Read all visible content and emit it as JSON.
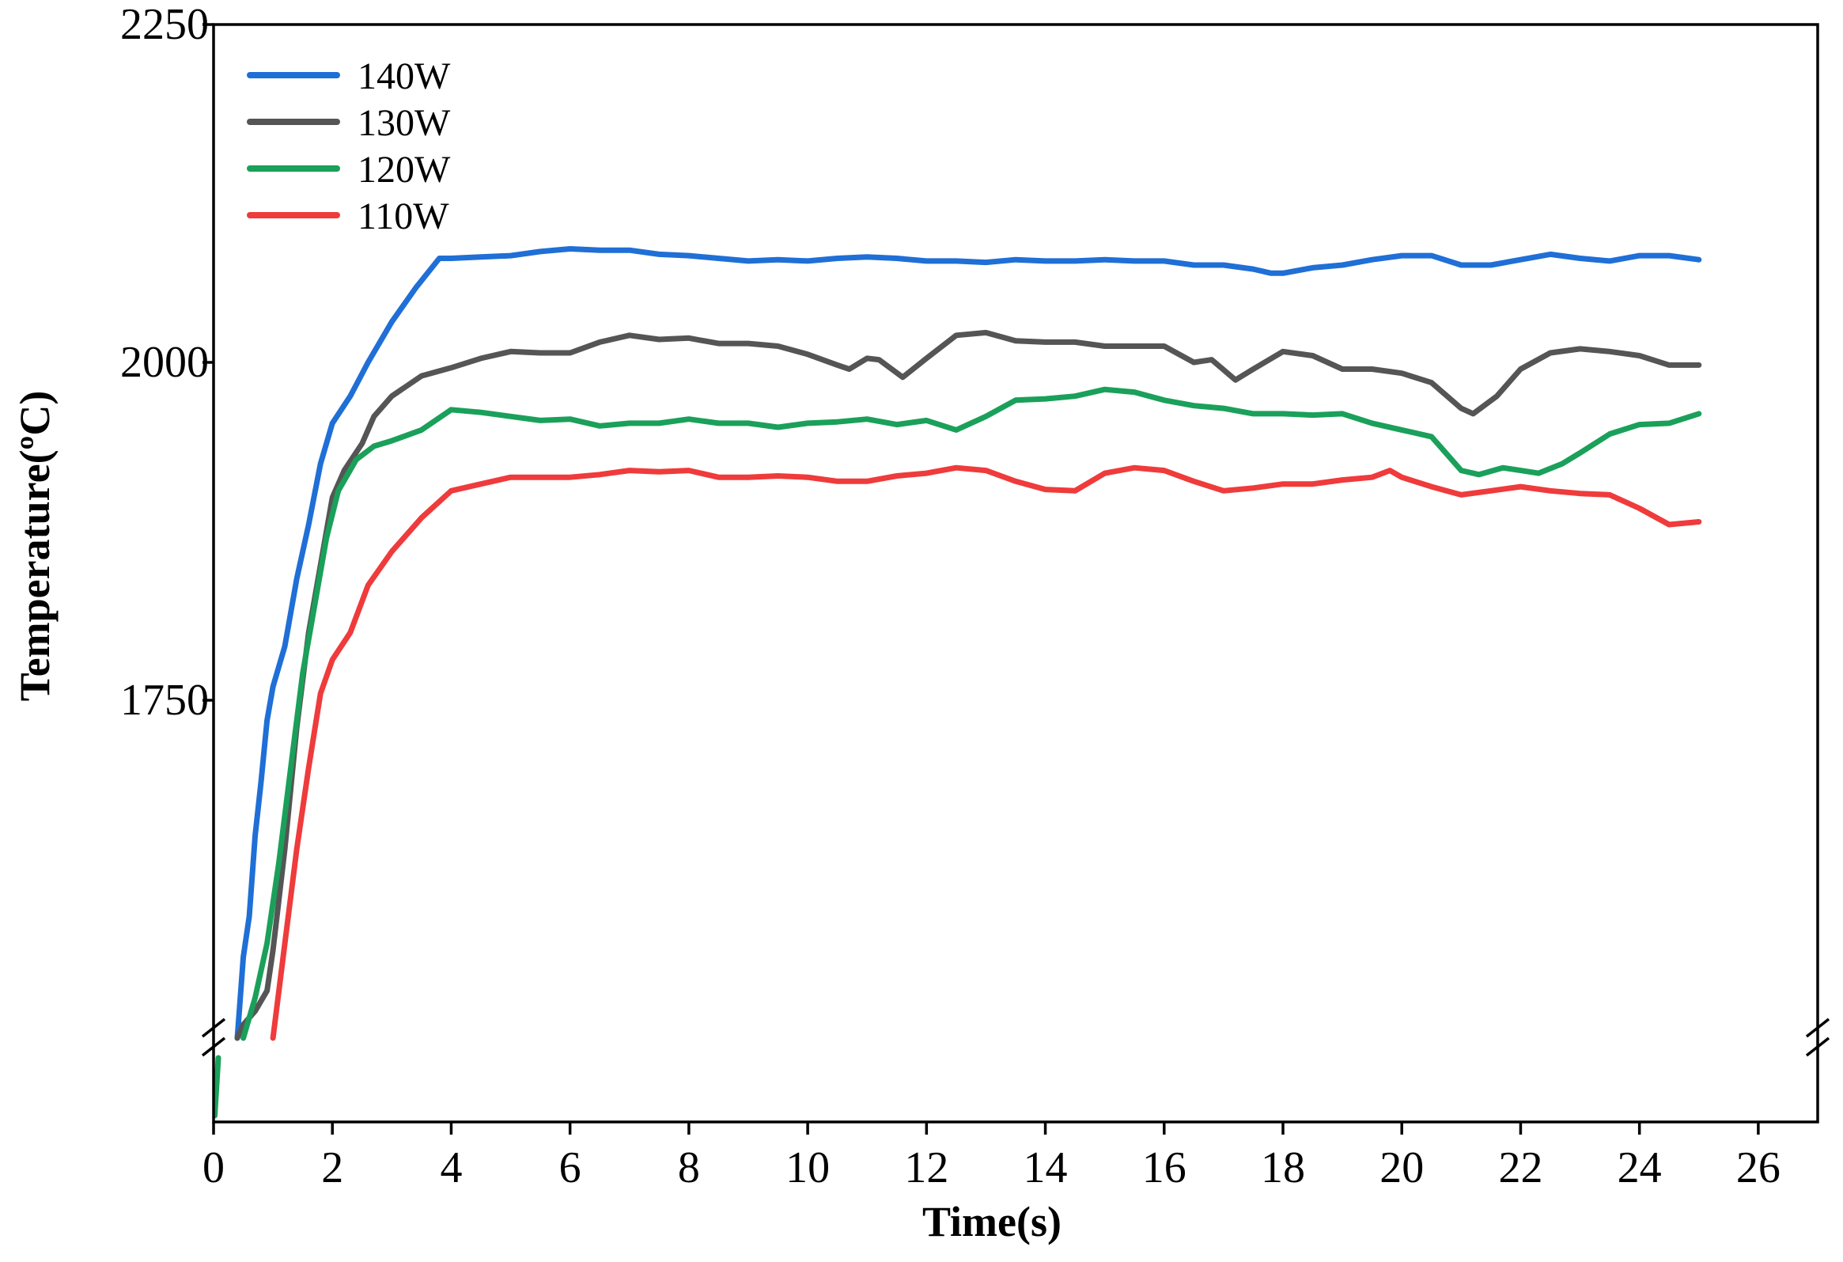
{
  "chart_data": {
    "type": "line",
    "title": "",
    "xlabel": "Time(s)",
    "ylabel": "Temperature(ºC)",
    "xlim": [
      0,
      27
    ],
    "ylim": [
      1500,
      2250
    ],
    "axis_break": "y-axis broken between 0 and 1500",
    "x_ticks": [
      0,
      2,
      4,
      6,
      8,
      10,
      12,
      14,
      16,
      18,
      20,
      22,
      24,
      26
    ],
    "y_ticks": [
      1750,
      2000,
      2250
    ],
    "x_tick_labels": [
      "0",
      "2",
      "4",
      "6",
      "8",
      "10",
      "12",
      "14",
      "16",
      "18",
      "20",
      "22",
      "24",
      "26"
    ],
    "y_tick_labels": [
      "1750",
      "2000",
      "2250"
    ],
    "legend_position": "top-left",
    "series": [
      {
        "name": "140W",
        "color": "#1f6fd6",
        "points": [
          [
            0.4,
            1500
          ],
          [
            0.5,
            1560
          ],
          [
            0.6,
            1590
          ],
          [
            0.7,
            1650
          ],
          [
            0.8,
            1690
          ],
          [
            0.9,
            1735
          ],
          [
            1.0,
            1760
          ],
          [
            1.2,
            1790
          ],
          [
            1.4,
            1840
          ],
          [
            1.6,
            1880
          ],
          [
            1.8,
            1925
          ],
          [
            2.0,
            1955
          ],
          [
            2.3,
            1975
          ],
          [
            2.6,
            2000
          ],
          [
            3.0,
            2030
          ],
          [
            3.4,
            2055
          ],
          [
            3.8,
            2077
          ],
          [
            4.0,
            2077
          ],
          [
            4.5,
            2078
          ],
          [
            5.0,
            2079
          ],
          [
            5.5,
            2082
          ],
          [
            6.0,
            2084
          ],
          [
            6.5,
            2083
          ],
          [
            7.0,
            2083
          ],
          [
            7.5,
            2080
          ],
          [
            8.0,
            2079
          ],
          [
            8.5,
            2077
          ],
          [
            9.0,
            2075
          ],
          [
            9.5,
            2076
          ],
          [
            10.0,
            2075
          ],
          [
            10.5,
            2077
          ],
          [
            11.0,
            2078
          ],
          [
            11.5,
            2077
          ],
          [
            12.0,
            2075
          ],
          [
            12.5,
            2075
          ],
          [
            13.0,
            2074
          ],
          [
            13.5,
            2076
          ],
          [
            14.0,
            2075
          ],
          [
            14.5,
            2075
          ],
          [
            15.0,
            2076
          ],
          [
            15.5,
            2075
          ],
          [
            16.0,
            2075
          ],
          [
            16.5,
            2072
          ],
          [
            17.0,
            2072
          ],
          [
            17.5,
            2069
          ],
          [
            17.8,
            2066
          ],
          [
            18.0,
            2066
          ],
          [
            18.5,
            2070
          ],
          [
            19.0,
            2072
          ],
          [
            19.5,
            2076
          ],
          [
            20.0,
            2079
          ],
          [
            20.5,
            2079
          ],
          [
            21.0,
            2072
          ],
          [
            21.5,
            2072
          ],
          [
            22.0,
            2076
          ],
          [
            22.5,
            2080
          ],
          [
            23.0,
            2077
          ],
          [
            23.5,
            2075
          ],
          [
            24.0,
            2079
          ],
          [
            24.5,
            2079
          ],
          [
            25.0,
            2076
          ]
        ]
      },
      {
        "name": "130W",
        "color": "#555555",
        "points": [
          [
            0.4,
            1500
          ],
          [
            0.5,
            1510
          ],
          [
            0.7,
            1520
          ],
          [
            0.9,
            1535
          ],
          [
            1.0,
            1565
          ],
          [
            1.2,
            1640
          ],
          [
            1.4,
            1730
          ],
          [
            1.6,
            1800
          ],
          [
            1.8,
            1850
          ],
          [
            2.0,
            1900
          ],
          [
            2.2,
            1920
          ],
          [
            2.5,
            1940
          ],
          [
            2.7,
            1960
          ],
          [
            3.0,
            1975
          ],
          [
            3.5,
            1990
          ],
          [
            4.0,
            1996
          ],
          [
            4.5,
            2003
          ],
          [
            5.0,
            2008
          ],
          [
            5.5,
            2007
          ],
          [
            6.0,
            2007
          ],
          [
            6.5,
            2015
          ],
          [
            7.0,
            2020
          ],
          [
            7.5,
            2017
          ],
          [
            8.0,
            2018
          ],
          [
            8.5,
            2014
          ],
          [
            9.0,
            2014
          ],
          [
            9.5,
            2012
          ],
          [
            10.0,
            2006
          ],
          [
            10.5,
            1998
          ],
          [
            10.7,
            1995
          ],
          [
            11.0,
            2003
          ],
          [
            11.2,
            2002
          ],
          [
            11.6,
            1989
          ],
          [
            12.0,
            2003
          ],
          [
            12.5,
            2020
          ],
          [
            13.0,
            2022
          ],
          [
            13.5,
            2016
          ],
          [
            14.0,
            2015
          ],
          [
            14.5,
            2015
          ],
          [
            15.0,
            2012
          ],
          [
            15.5,
            2012
          ],
          [
            16.0,
            2012
          ],
          [
            16.5,
            2000
          ],
          [
            16.8,
            2002
          ],
          [
            17.2,
            1987
          ],
          [
            17.5,
            1995
          ],
          [
            18.0,
            2008
          ],
          [
            18.5,
            2005
          ],
          [
            19.0,
            1995
          ],
          [
            19.5,
            1995
          ],
          [
            20.0,
            1992
          ],
          [
            20.5,
            1985
          ],
          [
            21.0,
            1966
          ],
          [
            21.2,
            1962
          ],
          [
            21.6,
            1975
          ],
          [
            22.0,
            1995
          ],
          [
            22.5,
            2007
          ],
          [
            23.0,
            2010
          ],
          [
            23.5,
            2008
          ],
          [
            24.0,
            2005
          ],
          [
            24.5,
            1998
          ],
          [
            25.0,
            1998
          ]
        ]
      },
      {
        "name": "120W",
        "color": "#1aa05a",
        "points": [
          [
            0.5,
            1500
          ],
          [
            0.7,
            1530
          ],
          [
            0.9,
            1570
          ],
          [
            1.1,
            1630
          ],
          [
            1.3,
            1700
          ],
          [
            1.5,
            1770
          ],
          [
            1.7,
            1820
          ],
          [
            1.9,
            1870
          ],
          [
            2.1,
            1905
          ],
          [
            2.4,
            1928
          ],
          [
            2.7,
            1938
          ],
          [
            3.0,
            1942
          ],
          [
            3.5,
            1950
          ],
          [
            4.0,
            1965
          ],
          [
            4.5,
            1963
          ],
          [
            5.0,
            1960
          ],
          [
            5.5,
            1957
          ],
          [
            6.0,
            1958
          ],
          [
            6.5,
            1953
          ],
          [
            7.0,
            1955
          ],
          [
            7.5,
            1955
          ],
          [
            8.0,
            1958
          ],
          [
            8.5,
            1955
          ],
          [
            9.0,
            1955
          ],
          [
            9.5,
            1952
          ],
          [
            10.0,
            1955
          ],
          [
            10.5,
            1956
          ],
          [
            11.0,
            1958
          ],
          [
            11.5,
            1954
          ],
          [
            12.0,
            1957
          ],
          [
            12.5,
            1950
          ],
          [
            13.0,
            1960
          ],
          [
            13.5,
            1972
          ],
          [
            14.0,
            1973
          ],
          [
            14.5,
            1975
          ],
          [
            15.0,
            1980
          ],
          [
            15.5,
            1978
          ],
          [
            16.0,
            1972
          ],
          [
            16.5,
            1968
          ],
          [
            17.0,
            1966
          ],
          [
            17.5,
            1962
          ],
          [
            18.0,
            1962
          ],
          [
            18.5,
            1961
          ],
          [
            19.0,
            1962
          ],
          [
            19.5,
            1955
          ],
          [
            20.0,
            1950
          ],
          [
            20.5,
            1945
          ],
          [
            21.0,
            1920
          ],
          [
            21.3,
            1917
          ],
          [
            21.7,
            1922
          ],
          [
            22.0,
            1920
          ],
          [
            22.3,
            1918
          ],
          [
            22.7,
            1925
          ],
          [
            23.0,
            1933
          ],
          [
            23.5,
            1947
          ],
          [
            24.0,
            1954
          ],
          [
            24.5,
            1955
          ],
          [
            25.0,
            1962
          ]
        ]
      },
      {
        "name": "110W",
        "color": "#ef3b3b",
        "points": [
          [
            1.0,
            1500
          ],
          [
            1.2,
            1570
          ],
          [
            1.4,
            1640
          ],
          [
            1.6,
            1700
          ],
          [
            1.8,
            1755
          ],
          [
            2.0,
            1780
          ],
          [
            2.3,
            1800
          ],
          [
            2.6,
            1835
          ],
          [
            3.0,
            1860
          ],
          [
            3.5,
            1885
          ],
          [
            4.0,
            1905
          ],
          [
            4.5,
            1910
          ],
          [
            5.0,
            1915
          ],
          [
            5.5,
            1915
          ],
          [
            6.0,
            1915
          ],
          [
            6.5,
            1917
          ],
          [
            7.0,
            1920
          ],
          [
            7.5,
            1919
          ],
          [
            8.0,
            1920
          ],
          [
            8.5,
            1915
          ],
          [
            9.0,
            1915
          ],
          [
            9.5,
            1916
          ],
          [
            10.0,
            1915
          ],
          [
            10.5,
            1912
          ],
          [
            11.0,
            1912
          ],
          [
            11.5,
            1916
          ],
          [
            12.0,
            1918
          ],
          [
            12.5,
            1922
          ],
          [
            13.0,
            1920
          ],
          [
            13.5,
            1912
          ],
          [
            14.0,
            1906
          ],
          [
            14.5,
            1905
          ],
          [
            15.0,
            1918
          ],
          [
            15.5,
            1922
          ],
          [
            16.0,
            1920
          ],
          [
            16.5,
            1912
          ],
          [
            17.0,
            1905
          ],
          [
            17.5,
            1907
          ],
          [
            18.0,
            1910
          ],
          [
            18.5,
            1910
          ],
          [
            19.0,
            1913
          ],
          [
            19.5,
            1915
          ],
          [
            19.8,
            1920
          ],
          [
            20.0,
            1915
          ],
          [
            20.5,
            1908
          ],
          [
            21.0,
            1902
          ],
          [
            21.5,
            1905
          ],
          [
            22.0,
            1908
          ],
          [
            22.5,
            1905
          ],
          [
            23.0,
            1903
          ],
          [
            23.5,
            1902
          ],
          [
            24.0,
            1892
          ],
          [
            24.5,
            1880
          ],
          [
            25.0,
            1882
          ]
        ]
      }
    ]
  }
}
